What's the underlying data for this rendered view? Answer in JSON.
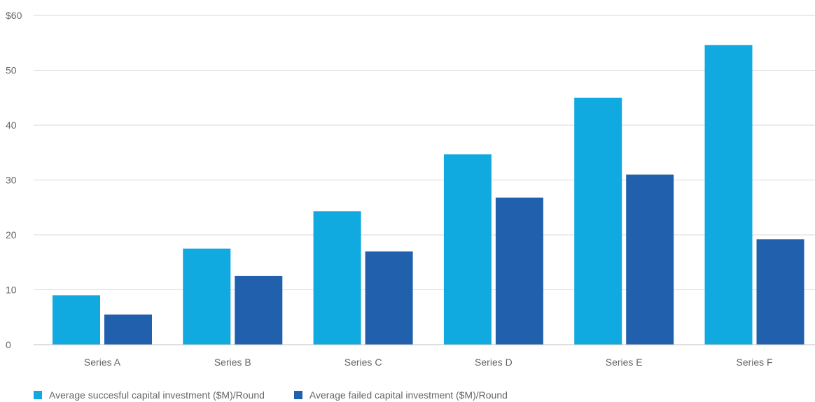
{
  "chart_data": {
    "type": "bar",
    "categories": [
      "Series A",
      "Series B",
      "Series C",
      "Series D",
      "Series E",
      "Series F"
    ],
    "series": [
      {
        "name": "Average succesful capital investment ($M)/Round",
        "color": "#10a9e0",
        "values": [
          9,
          17.5,
          24.3,
          34.7,
          45,
          54.6
        ]
      },
      {
        "name": "Average failed capital investment ($M)/Round",
        "color": "#2160ad",
        "values": [
          5.5,
          12.5,
          17,
          26.8,
          31,
          19.2
        ]
      }
    ],
    "ylim": [
      0,
      60
    ],
    "yticks": [
      0,
      10,
      20,
      30,
      40,
      50,
      60
    ],
    "ytick_labels": [
      "0",
      "10",
      "20",
      "30",
      "40",
      "50",
      "$60"
    ],
    "title": "",
    "xlabel": "",
    "ylabel": "",
    "grid": true,
    "legend_position": "bottom-left"
  }
}
